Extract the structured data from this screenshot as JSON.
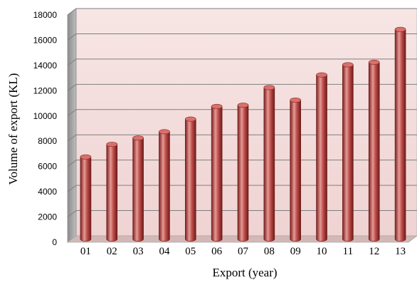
{
  "chart_data": {
    "type": "bar",
    "title": "",
    "xlabel": "Export (year)",
    "ylabel": "Volume of export (KL)",
    "categories": [
      "01",
      "02",
      "03",
      "04",
      "05",
      "06",
      "07",
      "08",
      "09",
      "10",
      "11",
      "12",
      "13"
    ],
    "values": [
      6500,
      7500,
      8000,
      8500,
      9500,
      10500,
      10600,
      12000,
      11000,
      13000,
      13800,
      14000,
      16600
    ],
    "ylim": [
      0,
      18000
    ],
    "yticks": [
      0,
      2000,
      4000,
      6000,
      8000,
      10000,
      12000,
      14000,
      16000,
      18000
    ],
    "grid": true,
    "legend": "none",
    "colors": {
      "bar": "#c0504d",
      "bar_dark": "#7a1f1c",
      "bar_light": "#e59a97",
      "plot_back": "#f2dcdb",
      "plot_floor": "#d3b8b7",
      "gridline": "#7f7f7f"
    }
  }
}
